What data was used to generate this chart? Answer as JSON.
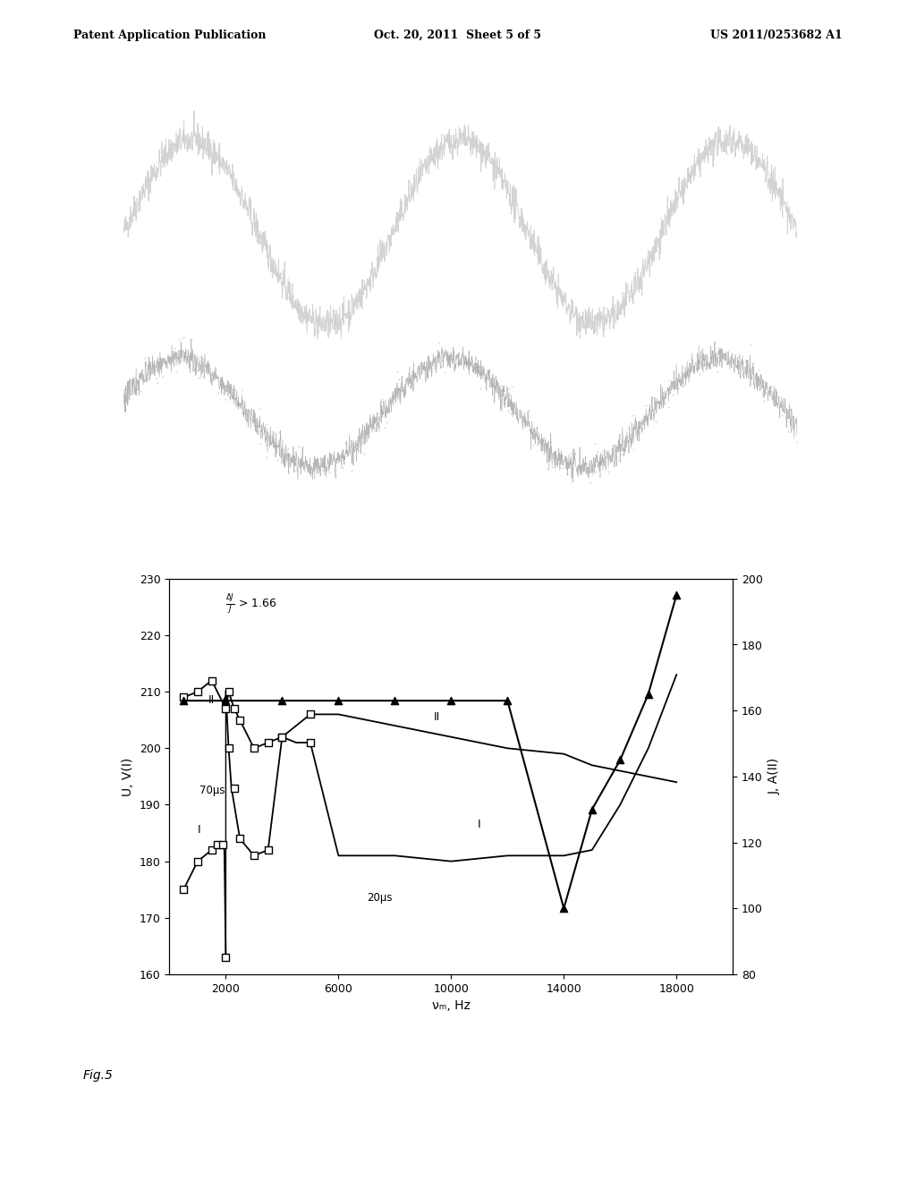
{
  "header_left": "Patent Application Publication",
  "header_mid": "Oct. 20, 2011  Sheet 5 of 5",
  "header_right": "US 2011/0253682 A1",
  "footer_label": "Fig.5",
  "ylabel_left": "U, V(I)",
  "ylabel_right": "J, A(II)",
  "xlabel": "νₘ, Hz",
  "xlim": [
    0,
    20000
  ],
  "ylim_left": [
    160,
    230
  ],
  "ylim_right": [
    80,
    200
  ],
  "yticks_left": [
    160,
    170,
    180,
    190,
    200,
    210,
    220,
    230
  ],
  "yticks_right": [
    80,
    100,
    120,
    140,
    160,
    180,
    200
  ],
  "xticks": [
    2000,
    6000,
    10000,
    14000,
    18000
  ],
  "xtick_labels": [
    "2000",
    "6000",
    "10000",
    "14000",
    "18000"
  ],
  "label_70us": "70μs",
  "label_20us": "20μs",
  "background_color": "#ffffff",
  "oscilloscope_bg": "#0d0d0d",
  "curve1_x": [
    500,
    1000,
    1500,
    1700,
    1850,
    1950,
    2000
  ],
  "curve1_y": [
    175,
    180,
    182,
    183,
    183,
    182,
    163
  ],
  "curve1b_x": [
    2000,
    2050,
    2100,
    2200,
    2500,
    3000,
    3500,
    4000,
    4500,
    5000,
    6000,
    8000,
    10000,
    12000,
    14000,
    15000,
    16000,
    17000,
    18000
  ],
  "curve1b_y": [
    210,
    205,
    200,
    193,
    184,
    181,
    182,
    202,
    201,
    201,
    181,
    181,
    180,
    181,
    181,
    182,
    190,
    200,
    213
  ],
  "curve2_x": [
    500,
    1000,
    1500,
    2000,
    2100,
    2300,
    2500,
    3000,
    3500,
    4000,
    5000,
    6000,
    8000,
    10000,
    12000,
    14000,
    15000,
    16000,
    17000,
    18000
  ],
  "curve2_y": [
    209,
    210,
    212,
    207,
    210,
    207,
    205,
    200,
    201,
    202,
    206,
    206,
    204,
    202,
    200,
    199,
    197,
    196,
    195,
    194
  ],
  "sq_I_x": [
    500,
    1000,
    1500,
    1700,
    1900,
    2000,
    2100,
    2300,
    2500,
    3000,
    3500,
    4000,
    5000
  ],
  "sq_I_y": [
    175,
    180,
    182,
    183,
    183,
    163,
    200,
    193,
    184,
    181,
    182,
    202,
    201
  ],
  "sq_II_x": [
    500,
    1000,
    1500,
    2000,
    2100,
    2300,
    2500,
    3000,
    3500,
    4000,
    5000
  ],
  "sq_II_y": [
    209,
    210,
    212,
    207,
    210,
    207,
    205,
    200,
    201,
    202,
    206
  ],
  "tri_flat_x": [
    500,
    1000,
    2000,
    3000,
    4000,
    5000,
    6000,
    8000,
    10000,
    12000
  ],
  "tri_flat_y": [
    163,
    163,
    163,
    163,
    163,
    163,
    163,
    163,
    163,
    163
  ],
  "tri_rise_x": [
    12000,
    14000,
    15000,
    16000,
    17000,
    18000
  ],
  "tri_rise_y": [
    163,
    100,
    130,
    145,
    165,
    195
  ],
  "tri_markers_x": [
    500,
    2000,
    4000,
    6000,
    8000,
    10000,
    12000,
    14000,
    15000,
    16000,
    17000,
    18000
  ],
  "tri_markers_y": [
    163,
    163,
    163,
    163,
    163,
    163,
    163,
    100,
    130,
    145,
    165,
    195
  ]
}
